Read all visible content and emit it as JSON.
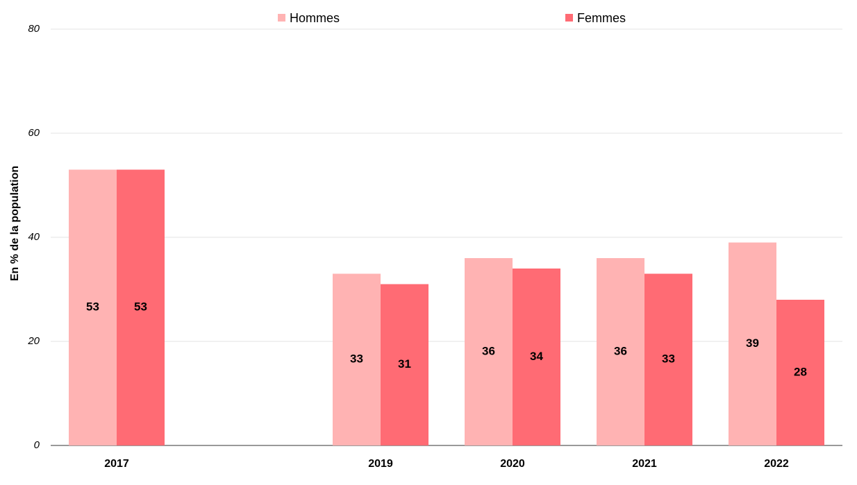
{
  "chart_data": {
    "type": "bar",
    "y_label": "En % de la population",
    "categories": [
      "2017",
      null,
      "2019",
      "2020",
      "2021",
      "2022"
    ],
    "series": [
      {
        "name": "Hommes",
        "color": "#ffb3b3",
        "values": [
          53,
          null,
          33,
          36,
          36,
          39
        ]
      },
      {
        "name": "Femmes",
        "color": "#ff6b74",
        "values": [
          53,
          null,
          31,
          34,
          33,
          28
        ]
      }
    ],
    "ylim": [
      0,
      80
    ],
    "yticks": [
      0,
      20,
      40,
      60,
      80
    ],
    "grid": true,
    "legend": "top"
  }
}
